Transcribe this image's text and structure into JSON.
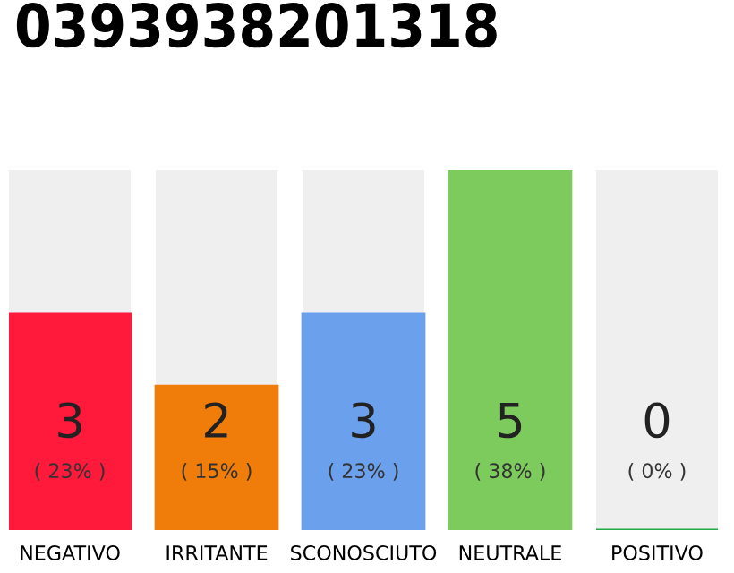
{
  "chart_data": {
    "type": "bar",
    "title": "0393938201318",
    "categories": [
      "NEGATIVO",
      "IRRITANTE",
      "SCONOSCIUTO",
      "NEUTRALE",
      "POSITIVO"
    ],
    "values": [
      3,
      2,
      3,
      5,
      0
    ],
    "colors": [
      "#ff1a3c",
      "#f07d0a",
      "#6aa0ec",
      "#7ccb5c",
      "#22aa44"
    ],
    "value_labels": [
      "3\n( 23% )",
      "2\n( 15% )",
      "3\n( 23% )",
      "5\n( 38% )",
      "0\n( 0% )"
    ],
    "ylim": [
      0,
      5
    ],
    "grid": false,
    "legend": false
  }
}
